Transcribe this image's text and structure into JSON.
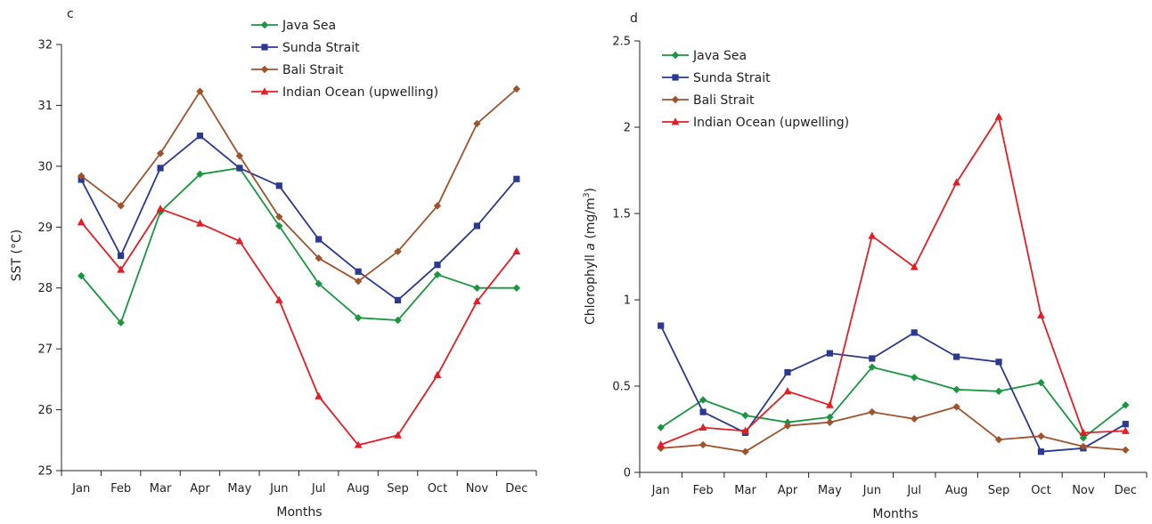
{
  "colors": {
    "java_sea": "#1a9641",
    "sunda_strait": "#2b3990",
    "bali_strait": "#a0522d",
    "indian_ocean": "#e31e24",
    "axis": "#231f20"
  },
  "chart_data": [
    {
      "type": "line",
      "panel_label": "c",
      "xlabel": "Months",
      "ylabel": "SST (°C)",
      "categories": [
        "Jan",
        "Feb",
        "Mar",
        "Apr",
        "May",
        "Jun",
        "Jul",
        "Aug",
        "Sep",
        "Oct",
        "Nov",
        "Dec"
      ],
      "ylim": [
        25,
        32
      ],
      "yticks": [
        "25",
        "26",
        "27",
        "28",
        "29",
        "30",
        "31",
        "32"
      ],
      "legend_position": "top-center",
      "grid": false,
      "series": [
        {
          "name": "Java Sea",
          "marker": "diamond",
          "color_key": "java_sea",
          "values": [
            28.2,
            27.43,
            29.25,
            29.87,
            29.97,
            29.02,
            28.07,
            27.51,
            27.47,
            28.22,
            28.0,
            28.0
          ]
        },
        {
          "name": "Sunda Strait",
          "marker": "square",
          "color_key": "sunda_strait",
          "values": [
            29.78,
            28.53,
            29.97,
            30.5,
            29.97,
            29.68,
            28.8,
            28.27,
            27.8,
            28.38,
            29.02,
            29.79
          ]
        },
        {
          "name": "Bali Strait",
          "marker": "diamond",
          "color_key": "bali_strait",
          "values": [
            29.84,
            29.35,
            30.21,
            31.23,
            30.17,
            29.17,
            28.49,
            28.11,
            28.6,
            29.35,
            30.7,
            31.27
          ]
        },
        {
          "name": "Indian Ocean (upwelling)",
          "marker": "triangle",
          "color_key": "indian_ocean",
          "values": [
            29.08,
            28.3,
            29.3,
            29.06,
            28.77,
            27.8,
            26.22,
            25.42,
            25.58,
            26.57,
            27.78,
            28.6
          ]
        }
      ]
    },
    {
      "type": "line",
      "panel_label": "d",
      "xlabel": "Months",
      "ylabel_prefix": "Chlorophyll ",
      "ylabel_italic": "a",
      "ylabel_suffix": " (mg/m",
      "ylabel_sup": "3",
      "ylabel_close": ")",
      "categories": [
        "Jan",
        "Feb",
        "Mar",
        "Apr",
        "May",
        "Jun",
        "Jul",
        "Aug",
        "Sep",
        "Oct",
        "Nov",
        "Dec"
      ],
      "ylim": [
        0,
        2.5
      ],
      "yticks": [
        "0",
        "0.5",
        "1",
        "1.5",
        "2",
        "2.5"
      ],
      "legend_position": "top-left",
      "grid": false,
      "series": [
        {
          "name": "Java Sea",
          "marker": "diamond",
          "color_key": "java_sea",
          "values": [
            0.26,
            0.42,
            0.33,
            0.29,
            0.32,
            0.61,
            0.55,
            0.48,
            0.47,
            0.52,
            0.2,
            0.39
          ]
        },
        {
          "name": "Sunda Strait",
          "marker": "square",
          "color_key": "sunda_strait",
          "values": [
            0.85,
            0.35,
            0.23,
            0.58,
            0.69,
            0.66,
            0.81,
            0.67,
            0.64,
            0.12,
            0.14,
            0.28
          ]
        },
        {
          "name": "Bali Strait",
          "marker": "diamond",
          "color_key": "bali_strait",
          "values": [
            0.14,
            0.16,
            0.12,
            0.27,
            0.29,
            0.35,
            0.31,
            0.38,
            0.19,
            0.21,
            0.15,
            0.13
          ]
        },
        {
          "name": "Indian Ocean (upwelling)",
          "marker": "triangle",
          "color_key": "indian_ocean",
          "values": [
            0.16,
            0.26,
            0.24,
            0.47,
            0.39,
            1.37,
            1.19,
            1.68,
            2.06,
            0.91,
            0.23,
            0.24
          ]
        }
      ]
    }
  ]
}
